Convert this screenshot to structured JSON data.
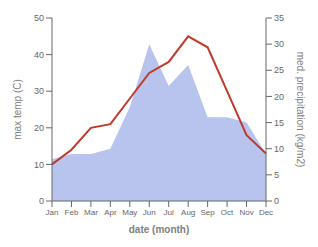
{
  "chart_data": {
    "type": "line",
    "x_label": "date (month)",
    "y_label": "max temp (C)",
    "y2_label": "med. precipitation (kg/m2)",
    "categories": [
      "Jan",
      "Feb",
      "Mar",
      "Apr",
      "May",
      "Jun",
      "Jul",
      "Aug",
      "Sep",
      "Oct",
      "Nov",
      "Dec"
    ],
    "series": [
      {
        "type": "area",
        "axis": "y2",
        "color": "#b8c4ee",
        "values": [
          8,
          9,
          9,
          10,
          18,
          30,
          22,
          26,
          16,
          16,
          15,
          9
        ]
      },
      {
        "type": "line",
        "color": "#c0392b",
        "values": [
          10,
          14,
          20,
          21,
          28,
          35,
          38,
          45,
          42,
          30,
          18,
          13
        ]
      }
    ],
    "ylim": [
      0,
      50
    ],
    "yticks": [
      0,
      10,
      20,
      30,
      40,
      50
    ],
    "y2lim": [
      0,
      35
    ],
    "y2ticks": [
      0,
      5,
      10,
      15,
      20,
      25,
      30,
      35
    ],
    "grid": false
  }
}
